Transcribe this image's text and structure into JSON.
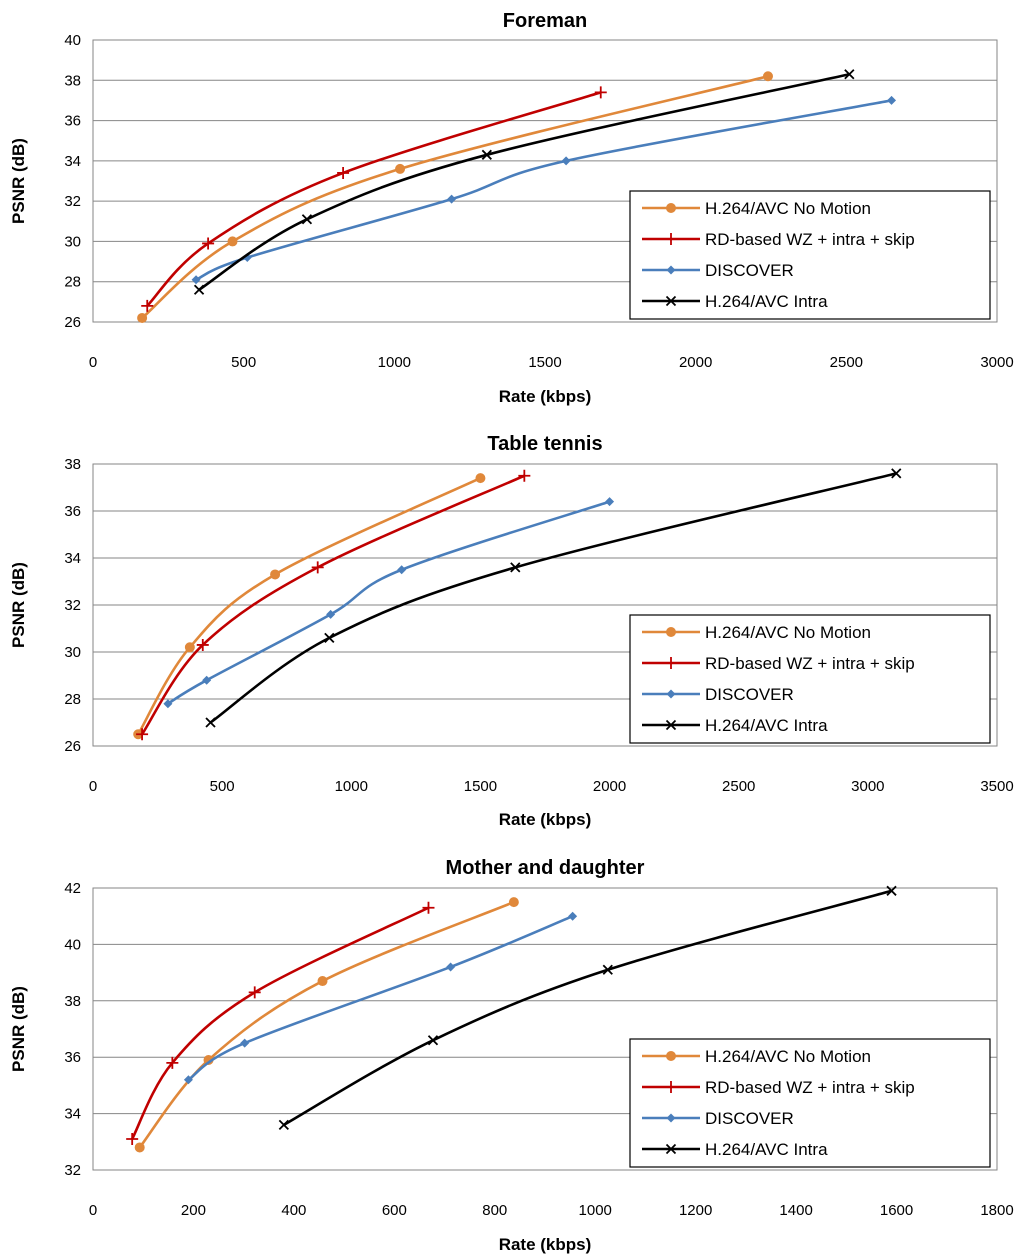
{
  "chart_data": [
    {
      "type": "line",
      "title": "Foreman",
      "xlabel": "Rate (kbps)",
      "ylabel": "PSNR (dB)",
      "xlim": [
        0,
        3000
      ],
      "ylim": [
        26,
        40
      ],
      "xticks": [
        0,
        500,
        1000,
        1500,
        2000,
        2500,
        3000
      ],
      "yticks": [
        26,
        28,
        30,
        32,
        34,
        36,
        38,
        40
      ],
      "grid": true,
      "legend_position": "right",
      "series": [
        {
          "name": "H.264/AVC No Motion",
          "color": "#E0883A",
          "marker": "circle",
          "x": [
            163,
            463,
            1019,
            2240
          ],
          "y": [
            26.2,
            30.0,
            33.6,
            38.2
          ]
        },
        {
          "name": "RD-based WZ + intra + skip",
          "color": "#C00000",
          "marker": "plus",
          "x": [
            180,
            382,
            830,
            1685
          ],
          "y": [
            26.8,
            29.9,
            33.4,
            37.4
          ]
        },
        {
          "name": "DISCOVER",
          "color": "#4A7EBB",
          "marker": "diamond",
          "x": [
            342,
            512,
            1190,
            1570,
            2650
          ],
          "y": [
            28.1,
            29.2,
            32.1,
            34.0,
            37.0
          ]
        },
        {
          "name": "H.264/AVC Intra",
          "color": "#000000",
          "marker": "x",
          "x": [
            352,
            710,
            1307,
            2510
          ],
          "y": [
            27.6,
            31.1,
            34.3,
            38.3
          ]
        }
      ]
    },
    {
      "type": "line",
      "title": "Table tennis",
      "xlabel": "Rate (kbps)",
      "ylabel": "PSNR (dB)",
      "xlim": [
        0,
        3500
      ],
      "ylim": [
        26,
        38
      ],
      "xticks": [
        0,
        500,
        1000,
        1500,
        2000,
        2500,
        3000,
        3500
      ],
      "yticks": [
        26,
        28,
        30,
        32,
        34,
        36,
        38
      ],
      "grid": true,
      "legend_position": "bottom-right",
      "series": [
        {
          "name": "H.264/AVC No Motion",
          "color": "#E0883A",
          "marker": "circle",
          "x": [
            175,
            375,
            705,
            1500
          ],
          "y": [
            26.5,
            30.2,
            33.3,
            37.4
          ]
        },
        {
          "name": "RD-based WZ + intra + skip",
          "color": "#C00000",
          "marker": "plus",
          "x": [
            190,
            425,
            870,
            1670
          ],
          "y": [
            26.5,
            30.3,
            33.6,
            37.5
          ]
        },
        {
          "name": "DISCOVER",
          "color": "#4A7EBB",
          "marker": "diamond",
          "x": [
            290,
            440,
            920,
            1195,
            2000
          ],
          "y": [
            27.8,
            28.8,
            31.6,
            33.5,
            36.4
          ]
        },
        {
          "name": "H.264/AVC Intra",
          "color": "#000000",
          "marker": "x",
          "x": [
            455,
            915,
            1635,
            3110
          ],
          "y": [
            27.0,
            30.6,
            33.6,
            37.6
          ]
        }
      ]
    },
    {
      "type": "line",
      "title": "Mother and daughter",
      "xlabel": "Rate (kbps)",
      "ylabel": "PSNR (dB)",
      "xlim": [
        0,
        1800
      ],
      "ylim": [
        32,
        42
      ],
      "xticks": [
        0,
        200,
        400,
        600,
        800,
        1000,
        1200,
        1400,
        1600,
        1800
      ],
      "yticks": [
        32,
        34,
        36,
        38,
        40,
        42
      ],
      "grid": true,
      "legend_position": "bottom-right",
      "series": [
        {
          "name": "H.264/AVC No Motion",
          "color": "#E0883A",
          "marker": "circle",
          "x": [
            93,
            230,
            457,
            838
          ],
          "y": [
            32.8,
            35.9,
            38.7,
            41.5
          ]
        },
        {
          "name": "RD-based WZ + intra + skip",
          "color": "#C00000",
          "marker": "plus",
          "x": [
            78,
            158,
            322,
            668
          ],
          "y": [
            33.1,
            35.8,
            38.3,
            41.3
          ]
        },
        {
          "name": "DISCOVER",
          "color": "#4A7EBB",
          "marker": "diamond",
          "x": [
            190,
            302,
            712,
            955
          ],
          "y": [
            35.2,
            36.5,
            39.2,
            41.0
          ]
        },
        {
          "name": "H.264/AVC Intra",
          "color": "#000000",
          "marker": "x",
          "x": [
            380,
            677,
            1025,
            1590
          ],
          "y": [
            33.6,
            36.6,
            39.1,
            41.9
          ]
        }
      ]
    }
  ]
}
